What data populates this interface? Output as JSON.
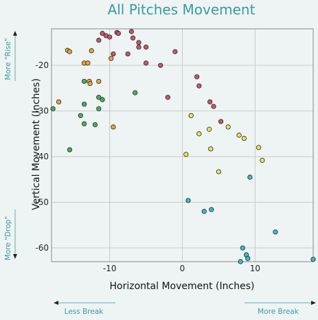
{
  "chart_data": {
    "type": "scatter",
    "title": "All Pitches Movement",
    "xlabel": "Horizontal Movement (Inches)",
    "ylabel": "Vertical Movement (Inches)",
    "xlim": [
      -18,
      18
    ],
    "ylim": [
      -63,
      -12
    ],
    "xticks": [
      -10,
      0,
      10
    ],
    "yticks": [
      -20,
      -30,
      -40,
      -50,
      -60
    ],
    "grid": true,
    "annotations": {
      "more_rise": "More \"Rise\"",
      "more_drop": "More \"Drop\"",
      "less_break": "Less Break",
      "more_break": "More Break"
    },
    "series": [
      {
        "color": "#c9566c",
        "points": [
          [
            -10.5,
            -13.5
          ],
          [
            -10.0,
            -13.8
          ],
          [
            -9.0,
            -12.8
          ],
          [
            -8.8,
            -13.0
          ],
          [
            -7.0,
            -12.6
          ],
          [
            -6.8,
            -14.0
          ],
          [
            -11.0,
            -13.0
          ],
          [
            -11.5,
            -14.5
          ],
          [
            -9.5,
            -17.5
          ],
          [
            -7.5,
            -17.5
          ],
          [
            -6.0,
            -15.0
          ],
          [
            -5.0,
            -16.0
          ],
          [
            -6.0,
            -16.0
          ],
          [
            -5.0,
            -19.5
          ],
          [
            -3.0,
            -20.0
          ],
          [
            -1.0,
            -17.0
          ],
          [
            -2.0,
            -27.0
          ],
          [
            2.0,
            -22.5
          ],
          [
            2.3,
            -24.5
          ],
          [
            3.8,
            -28.0
          ],
          [
            4.3,
            -29.0
          ],
          [
            5.3,
            -32.3
          ]
        ]
      },
      {
        "color": "#e8a63a",
        "points": [
          [
            -15.8,
            -16.7
          ],
          [
            -15.5,
            -17.0
          ],
          [
            -12.5,
            -16.8
          ],
          [
            -13.5,
            -19.5
          ],
          [
            -13.0,
            -19.5
          ],
          [
            -12.8,
            -23.5
          ],
          [
            -12.7,
            -24.0
          ],
          [
            -11.5,
            -23.5
          ],
          [
            -9.8,
            -18.5
          ],
          [
            -17.0,
            -28.0
          ],
          [
            -9.5,
            -33.5
          ]
        ]
      },
      {
        "color": "#45b35e",
        "points": [
          [
            -17.8,
            -29.5
          ],
          [
            -13.5,
            -23.5
          ],
          [
            -13.5,
            -28.5
          ],
          [
            -11.5,
            -27.0
          ],
          [
            -11.0,
            -27.5
          ],
          [
            -11.5,
            -29.5
          ],
          [
            -14.0,
            -31.0
          ],
          [
            -13.5,
            -32.8
          ],
          [
            -12.0,
            -33.0
          ],
          [
            -15.5,
            -38.5
          ],
          [
            -6.5,
            -26.0
          ]
        ]
      },
      {
        "color": "#e6e65e",
        "points": [
          [
            1.2,
            -31.0
          ],
          [
            2.3,
            -35.0
          ],
          [
            3.7,
            -34.0
          ],
          [
            3.9,
            -38.3
          ],
          [
            6.3,
            -33.5
          ],
          [
            7.8,
            -35.3
          ],
          [
            8.5,
            -36.0
          ],
          [
            10.5,
            -38.0
          ],
          [
            11.0,
            -40.8
          ],
          [
            0.5,
            -39.5
          ],
          [
            5.0,
            -43.3
          ]
        ]
      },
      {
        "color": "#3bbcd0",
        "points": [
          [
            0.8,
            -49.6
          ],
          [
            3.0,
            -52.0
          ],
          [
            4.0,
            -51.6
          ],
          [
            9.3,
            -44.5
          ],
          [
            8.3,
            -60.0
          ],
          [
            8.8,
            -61.5
          ],
          [
            9.0,
            -62.3
          ],
          [
            8.0,
            -63.0
          ],
          [
            12.8,
            -56.5
          ],
          [
            18.0,
            -62.5
          ]
        ]
      }
    ]
  }
}
